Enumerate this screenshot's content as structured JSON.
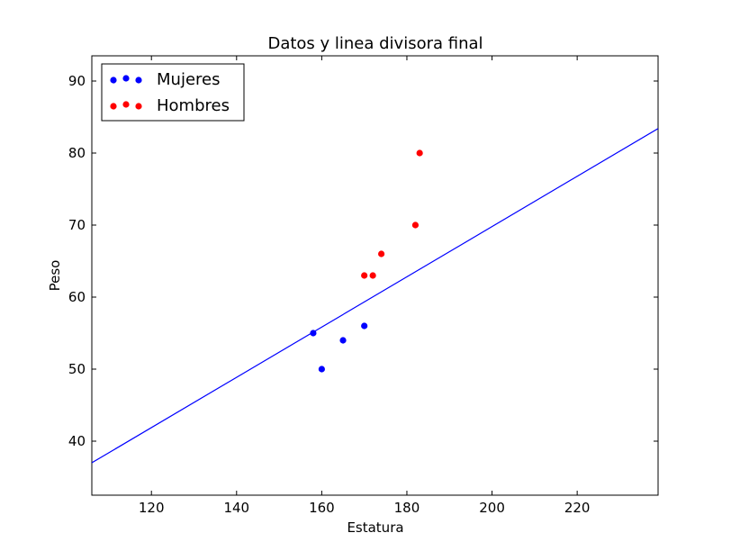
{
  "chart_data": {
    "type": "scatter",
    "title": "Datos y linea divisora final",
    "xlabel": "Estatura",
    "ylabel": "Peso",
    "xlim": [
      106,
      239
    ],
    "ylim": [
      32.5,
      93.5
    ],
    "xticks": [
      120,
      140,
      160,
      180,
      200,
      220
    ],
    "yticks": [
      40,
      50,
      60,
      70,
      80,
      90
    ],
    "grid": false,
    "legend_position": "top-left",
    "series": [
      {
        "name": "Mujeres",
        "color": "#0000ff",
        "points": [
          {
            "x": 158,
            "y": 55
          },
          {
            "x": 160,
            "y": 50
          },
          {
            "x": 165,
            "y": 54
          },
          {
            "x": 170,
            "y": 56
          }
        ]
      },
      {
        "name": "Hombres",
        "color": "#ff0000",
        "points": [
          {
            "x": 170,
            "y": 63
          },
          {
            "x": 172,
            "y": 63
          },
          {
            "x": 174,
            "y": 66
          },
          {
            "x": 182,
            "y": 70
          },
          {
            "x": 183,
            "y": 80
          }
        ]
      }
    ],
    "lines": [
      {
        "color": "#0000ff",
        "points": [
          {
            "x": 106,
            "y": 37
          },
          {
            "x": 239,
            "y": 83.4
          }
        ]
      }
    ]
  }
}
